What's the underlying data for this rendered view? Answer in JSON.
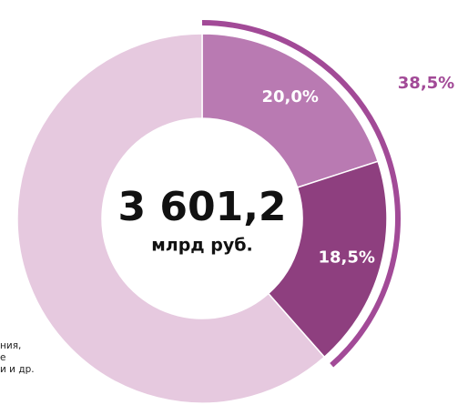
{
  "chart_data": {
    "type": "donut",
    "center_value": "3 601,2",
    "center_unit": "млрд руб.",
    "values": [
      20.0,
      18.5,
      61.5
    ],
    "value_labels": [
      "20,0%",
      "18,5%",
      null
    ],
    "colors": [
      "#b97ab2",
      "#8e3f7f",
      "#e6c9df"
    ],
    "highlight": {
      "value": 38.5,
      "label": "38,5%",
      "color": "#a24a97"
    },
    "annotation": [
      "ния,",
      "е",
      "и и др."
    ]
  }
}
